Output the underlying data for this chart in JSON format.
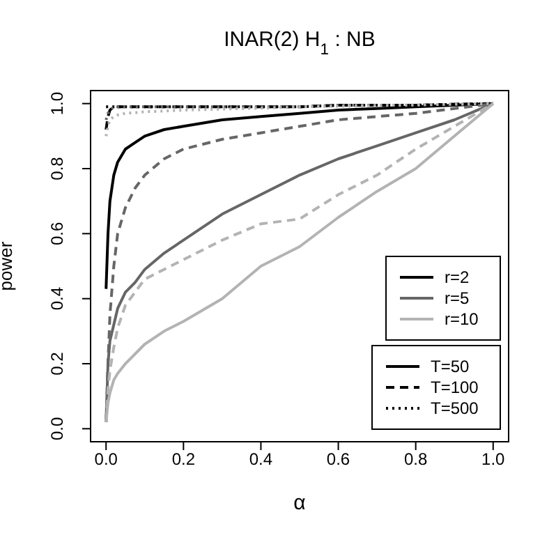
{
  "chart_data": {
    "type": "line",
    "title": "INAR(2) H$_{1}$:  NB",
    "xlabel": "α",
    "ylabel": "power",
    "x": [
      0,
      0.005,
      0.01,
      0.02,
      0.03,
      0.05,
      0.075,
      0.1,
      0.15,
      0.2,
      0.3,
      0.4,
      0.5,
      0.6,
      0.7,
      0.8,
      0.9,
      1
    ],
    "xlim": [
      -0.04,
      1.04
    ],
    "ylim": [
      -0.04,
      1.04
    ],
    "xticks": [
      {
        "value": 0,
        "label": "0.0"
      },
      0.2,
      0.4,
      0.6,
      0.8,
      {
        "value": 1,
        "label": "1.0"
      }
    ],
    "yticks": [
      {
        "value": 0,
        "label": "0.0"
      },
      0.2,
      0.4,
      0.6,
      0.8,
      {
        "value": 1,
        "label": "1.0"
      }
    ],
    "series": [
      {
        "color": "#000000",
        "line_style": "solid",
        "values": [
          0.43,
          0.6,
          0.7,
          0.78,
          0.82,
          0.86,
          0.88,
          0.9,
          0.92,
          0.93,
          0.95,
          0.96,
          0.97,
          0.98,
          0.985,
          0.99,
          0.995,
          1
        ]
      },
      {
        "color": "#000000",
        "line_style": "dashed",
        "values": [
          0.92,
          0.96,
          0.98,
          0.99,
          0.99,
          0.99,
          0.99,
          0.99,
          0.99,
          0.99,
          0.99,
          0.99,
          0.99,
          0.995,
          0.995,
          0.995,
          0.998,
          1
        ]
      },
      {
        "color": "#000000",
        "line_style": "dotted",
        "values": [
          0.99,
          0.99,
          0.99,
          0.99,
          0.99,
          0.99,
          0.99,
          0.99,
          0.99,
          0.99,
          0.99,
          0.99,
          0.99,
          0.995,
          0.995,
          0.995,
          0.998,
          1
        ]
      },
      {
        "color": "#666666",
        "line_style": "solid",
        "values": [
          0.02,
          0.2,
          0.27,
          0.32,
          0.37,
          0.42,
          0.45,
          0.49,
          0.54,
          0.58,
          0.66,
          0.72,
          0.78,
          0.83,
          0.87,
          0.91,
          0.95,
          1
        ]
      },
      {
        "color": "#666666",
        "line_style": "dashed",
        "values": [
          0.02,
          0.2,
          0.35,
          0.5,
          0.6,
          0.68,
          0.74,
          0.78,
          0.83,
          0.86,
          0.89,
          0.91,
          0.93,
          0.95,
          0.96,
          0.97,
          0.985,
          1
        ]
      },
      {
        "color": "#666666",
        "line_style": "dotted",
        "values": [
          0.95,
          0.97,
          0.98,
          0.99,
          0.99,
          0.99,
          0.99,
          0.99,
          0.99,
          0.99,
          0.99,
          0.99,
          0.99,
          0.995,
          0.995,
          0.995,
          0.998,
          1
        ]
      },
      {
        "color": "#b3b3b3",
        "line_style": "solid",
        "values": [
          0.02,
          0.08,
          0.11,
          0.15,
          0.17,
          0.2,
          0.23,
          0.26,
          0.3,
          0.33,
          0.4,
          0.5,
          0.56,
          0.65,
          0.73,
          0.8,
          0.9,
          1
        ]
      },
      {
        "color": "#b3b3b3",
        "line_style": "dashed",
        "values": [
          0.02,
          0.12,
          0.18,
          0.25,
          0.31,
          0.38,
          0.42,
          0.46,
          0.49,
          0.52,
          0.58,
          0.63,
          0.645,
          0.72,
          0.78,
          0.86,
          0.93,
          1
        ]
      },
      {
        "color": "#b3b3b3",
        "line_style": "dotted",
        "values": [
          0.9,
          0.93,
          0.95,
          0.96,
          0.965,
          0.97,
          0.972,
          0.975,
          0.977,
          0.98,
          0.983,
          0.986,
          0.99,
          0.992,
          0.994,
          0.996,
          0.998,
          1
        ]
      }
    ],
    "annotations": [
      "r=2",
      "r=5",
      "r=10",
      "T=50",
      "T=100",
      "T=500"
    ]
  }
}
